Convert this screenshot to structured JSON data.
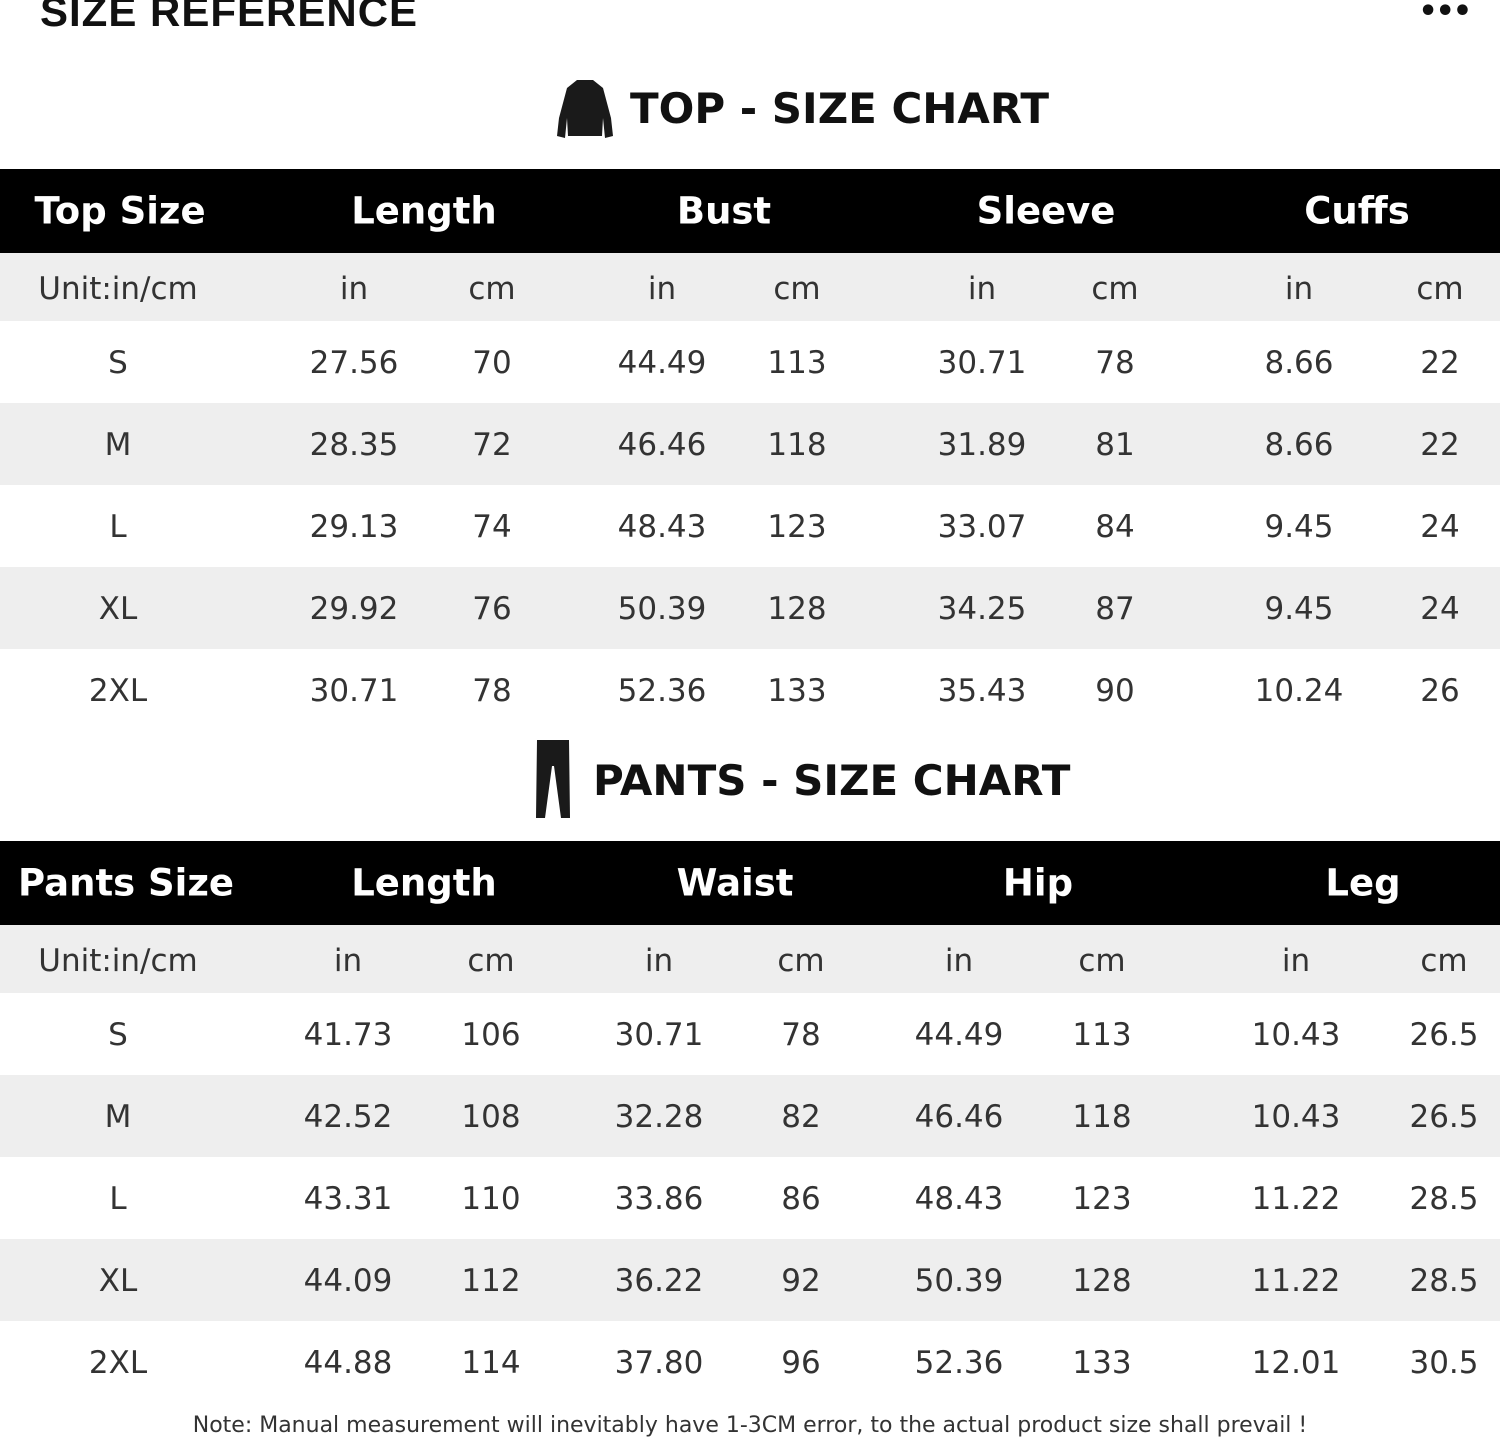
{
  "title": "SIZE REFERENCE",
  "more_icon": "ellipsis-icon",
  "top": {
    "heading": "TOP - SIZE CHART",
    "icon": "jacket-icon",
    "headers": [
      "Top Size",
      "Length",
      "Bust",
      "Sleeve",
      "Cuffs"
    ],
    "units": [
      "Unit:in/cm",
      "in",
      "cm",
      "in",
      "cm",
      "in",
      "cm",
      "in",
      "cm"
    ],
    "rows": [
      [
        "S",
        "27.56",
        "70",
        "44.49",
        "113",
        "30.71",
        "78",
        "8.66",
        "22"
      ],
      [
        "M",
        "28.35",
        "72",
        "46.46",
        "118",
        "31.89",
        "81",
        "8.66",
        "22"
      ],
      [
        "L",
        "29.13",
        "74",
        "48.43",
        "123",
        "33.07",
        "84",
        "9.45",
        "24"
      ],
      [
        "XL",
        "29.92",
        "76",
        "50.39",
        "128",
        "34.25",
        "87",
        "9.45",
        "24"
      ],
      [
        "2XL",
        "30.71",
        "78",
        "52.36",
        "133",
        "35.43",
        "90",
        "10.24",
        "26"
      ]
    ]
  },
  "pants": {
    "heading": "PANTS - SIZE CHART",
    "icon": "pants-icon",
    "headers": [
      "Pants Size",
      "Length",
      "Waist",
      "Hip",
      "Leg"
    ],
    "units": [
      "Unit:in/cm",
      "in",
      "cm",
      "in",
      "cm",
      "in",
      "cm",
      "in",
      "cm"
    ],
    "rows": [
      [
        "S",
        "41.73",
        "106",
        "30.71",
        "78",
        "44.49",
        "113",
        "10.43",
        "26.5"
      ],
      [
        "M",
        "42.52",
        "108",
        "32.28",
        "82",
        "46.46",
        "118",
        "10.43",
        "26.5"
      ],
      [
        "L",
        "43.31",
        "110",
        "33.86",
        "86",
        "48.43",
        "123",
        "11.22",
        "28.5"
      ],
      [
        "XL",
        "44.09",
        "112",
        "36.22",
        "92",
        "50.39",
        "128",
        "11.22",
        "28.5"
      ],
      [
        "2XL",
        "44.88",
        "114",
        "37.80",
        "96",
        "52.36",
        "133",
        "12.01",
        "30.5"
      ]
    ]
  },
  "note": "Note: Manual measurement will inevitably have 1-3CM error, to the actual product size shall prevail !"
}
